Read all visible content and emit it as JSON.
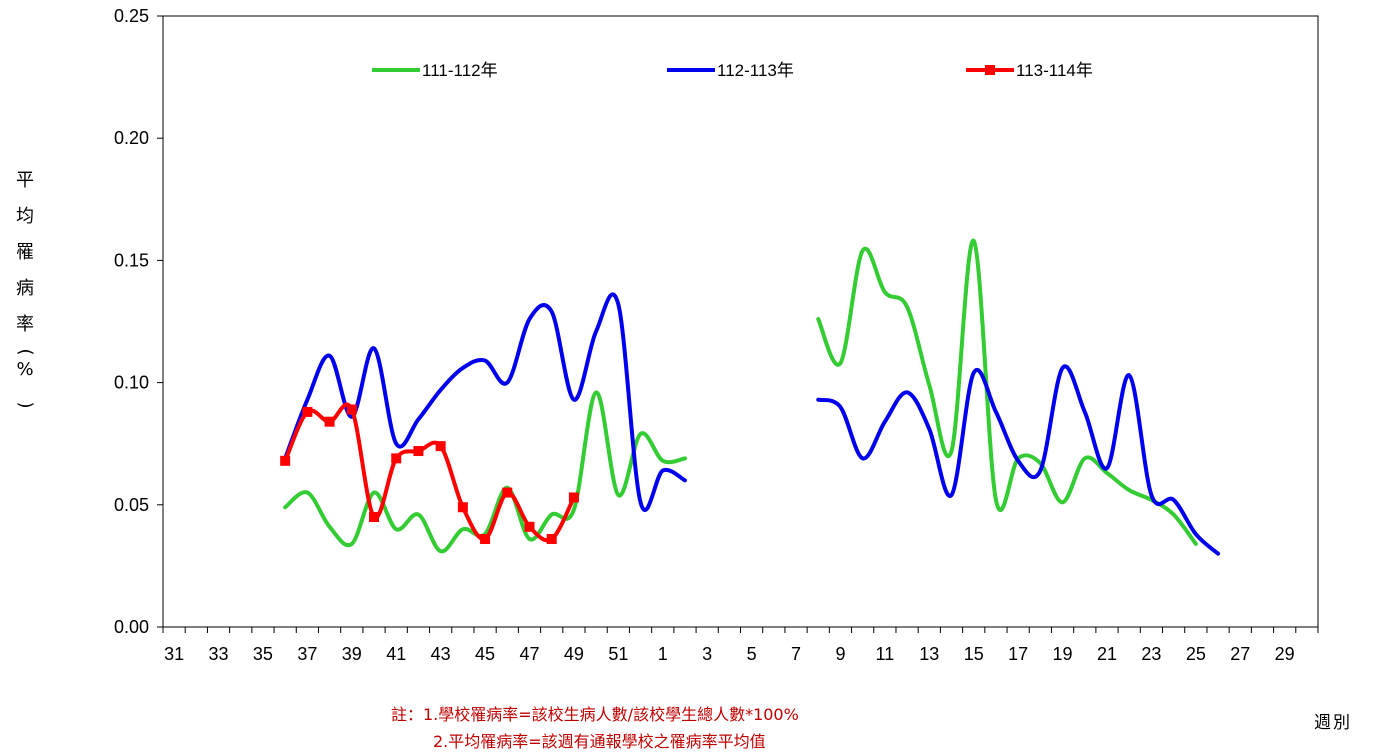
{
  "chart_data": {
    "type": "line",
    "ylabel": "平均罹病率(%)",
    "xlabel": "週別",
    "ylim": [
      0,
      0.25
    ],
    "yticks": [
      "0.00",
      "0.05",
      "0.10",
      "0.15",
      "0.20",
      "0.25"
    ],
    "yticks_values": [
      0,
      0.05,
      0.1,
      0.15,
      0.2,
      0.25
    ],
    "x_categories": [
      "31",
      "32",
      "33",
      "34",
      "35",
      "36",
      "37",
      "38",
      "39",
      "40",
      "41",
      "42",
      "43",
      "44",
      "45",
      "46",
      "47",
      "48",
      "49",
      "50",
      "51",
      "52",
      "1",
      "2",
      "3",
      "4",
      "5",
      "6",
      "7",
      "8",
      "9",
      "10",
      "11",
      "12",
      "13",
      "14",
      "15",
      "16",
      "17",
      "18",
      "19",
      "20",
      "21",
      "22",
      "23",
      "24",
      "25",
      "26",
      "27",
      "28",
      "29",
      "30"
    ],
    "xtick_labels": [
      "31",
      "33",
      "35",
      "37",
      "39",
      "41",
      "43",
      "45",
      "47",
      "49",
      "51",
      "1",
      "3",
      "5",
      "7",
      "9",
      "11",
      "13",
      "15",
      "17",
      "19",
      "21",
      "23",
      "25",
      "27",
      "29"
    ],
    "legend_position": "top",
    "series": [
      {
        "name": "111-112年",
        "color": "#33cc33",
        "marker": "none",
        "segments": [
          {
            "x": [
              "36",
              "37",
              "38",
              "39",
              "40",
              "41",
              "42",
              "43",
              "44",
              "45",
              "46",
              "47",
              "48",
              "49",
              "50",
              "51",
              "52",
              "1",
              "2"
            ],
            "y": [
              0.049,
              0.055,
              0.041,
              0.034,
              0.055,
              0.04,
              0.046,
              0.031,
              0.04,
              0.038,
              0.057,
              0.036,
              0.046,
              0.048,
              0.096,
              0.054,
              0.079,
              0.068,
              0.069
            ]
          },
          {
            "x": [
              "8",
              "9",
              "10",
              "11",
              "12",
              "13",
              "14",
              "15",
              "16",
              "17",
              "18",
              "19",
              "20",
              "21",
              "22",
              "23",
              "24",
              "25"
            ],
            "y": [
              0.126,
              0.108,
              0.154,
              0.137,
              0.131,
              0.099,
              0.072,
              0.158,
              0.052,
              0.069,
              0.067,
              0.051,
              0.069,
              0.063,
              0.056,
              0.052,
              0.046,
              0.034
            ]
          }
        ]
      },
      {
        "name": "112-113年",
        "color": "#0000ee",
        "marker": "none",
        "segments": [
          {
            "x": [
              "36",
              "37",
              "38",
              "39",
              "40",
              "41",
              "42",
              "43",
              "44",
              "45",
              "46",
              "47",
              "48",
              "49",
              "50",
              "51",
              "52",
              "1",
              "2"
            ],
            "y": [
              0.069,
              0.093,
              0.111,
              0.086,
              0.114,
              0.075,
              0.085,
              0.097,
              0.106,
              0.109,
              0.1,
              0.126,
              0.129,
              0.093,
              0.121,
              0.132,
              0.051,
              0.064,
              0.06
            ]
          },
          {
            "x": [
              "8",
              "9",
              "10",
              "11",
              "12",
              "13",
              "14",
              "15",
              "16",
              "17",
              "18",
              "19",
              "20",
              "21",
              "22",
              "23",
              "24",
              "25",
              "26"
            ],
            "y": [
              0.093,
              0.09,
              0.069,
              0.084,
              0.096,
              0.081,
              0.054,
              0.104,
              0.088,
              0.068,
              0.064,
              0.106,
              0.088,
              0.065,
              0.103,
              0.054,
              0.052,
              0.038,
              0.03
            ]
          }
        ]
      },
      {
        "name": "113-114年",
        "color": "#ff0000",
        "marker": "square",
        "segments": [
          {
            "x": [
              "36",
              "37",
              "38",
              "39",
              "40",
              "41",
              "42",
              "43",
              "44",
              "45",
              "46",
              "47",
              "48",
              "49"
            ],
            "y": [
              0.068,
              0.088,
              0.084,
              0.089,
              0.045,
              0.069,
              0.072,
              0.074,
              0.049,
              0.036,
              0.055,
              0.041,
              0.036,
              0.053
            ]
          }
        ]
      }
    ]
  },
  "notes": [
    "註：1.學校罹病率=該校生病人數/該校學生總人數*100%",
    "2.平均罹病率=該週有通報學校之罹病率平均值"
  ]
}
